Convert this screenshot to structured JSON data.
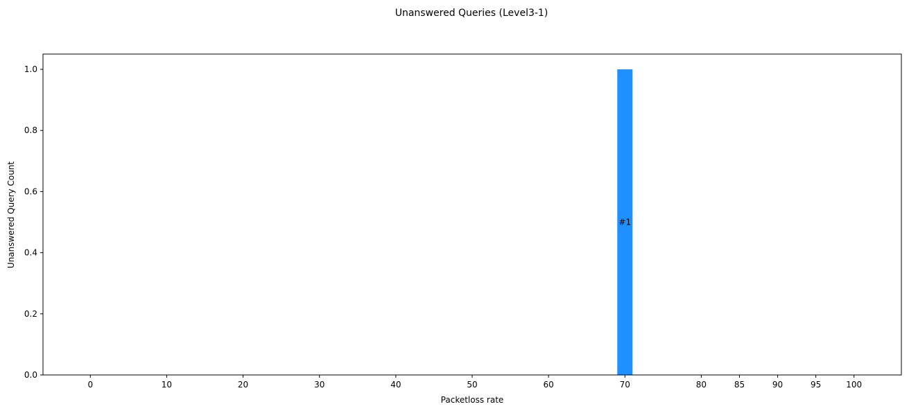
{
  "chart_data": {
    "type": "bar",
    "title": "Unanswered Queries (Level3-1)",
    "xlabel": "Packetloss rate",
    "ylabel": "Unanswered Query Count",
    "categories": [
      "0",
      "10",
      "20",
      "30",
      "40",
      "50",
      "60",
      "70",
      "80",
      "85",
      "90",
      "95",
      "100"
    ],
    "x": [
      0,
      10,
      20,
      30,
      40,
      50,
      60,
      70,
      80,
      85,
      90,
      95,
      100
    ],
    "values": [
      0,
      0,
      0,
      0,
      0,
      0,
      0,
      1,
      0,
      0,
      0,
      0,
      0
    ],
    "bar_labels": [
      "",
      "",
      "",
      "",
      "",
      "",
      "",
      "#1",
      "",
      "",
      "",
      "",
      ""
    ],
    "xlim": [
      -6.2,
      106.2
    ],
    "ylim": [
      0,
      1.05
    ],
    "yticks": [
      0.0,
      0.2,
      0.4,
      0.6,
      0.8,
      1.0
    ],
    "ytick_labels": [
      "0.0",
      "0.2",
      "0.4",
      "0.6",
      "0.8",
      "1.0"
    ],
    "bar_width": 2,
    "bar_color": "#1E90FF",
    "grid": false,
    "legend": "none"
  }
}
